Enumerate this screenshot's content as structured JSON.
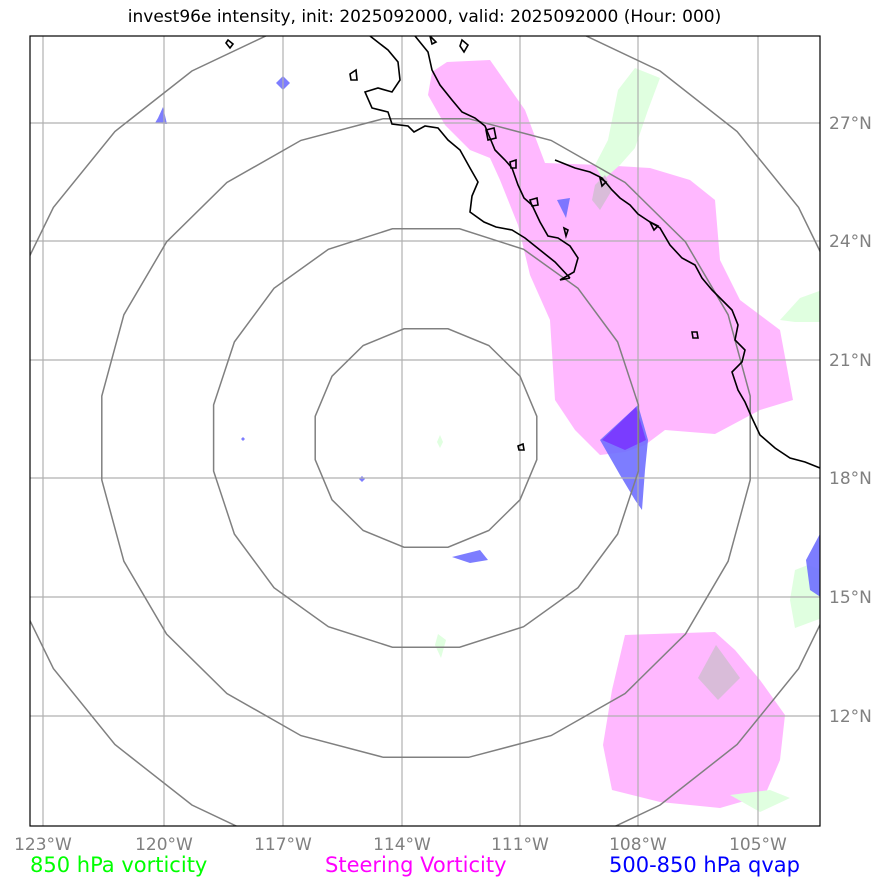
{
  "title": "invest96e intensity, init: 2025092000, valid: 2025092000 (Hour: 000)",
  "x_ticks": [
    "123°W",
    "120°W",
    "117°W",
    "114°W",
    "111°W",
    "108°W",
    "105°W"
  ],
  "y_ticks": [
    "27°N",
    "24°N",
    "21°N",
    "18°N",
    "15°N",
    "12°N"
  ],
  "legend": [
    {
      "label": "850 hPa vorticity",
      "color": "#00ff00"
    },
    {
      "label": "Steering Vorticity",
      "color": "#ff00ff"
    },
    {
      "label": "500-850 hPa qvap",
      "color": "#0000ff"
    }
  ],
  "colors": {
    "steering_fill": "#ffb8ff",
    "vorticity_fill": "#e0ffe0",
    "qvap_fill": "#6f6fff",
    "qvap_dark": "#7a3cff",
    "overlap_fill": "#d9bcd9",
    "coastline": "#000000",
    "grid": "#b0b0b0",
    "range_rings": "#808080"
  }
}
